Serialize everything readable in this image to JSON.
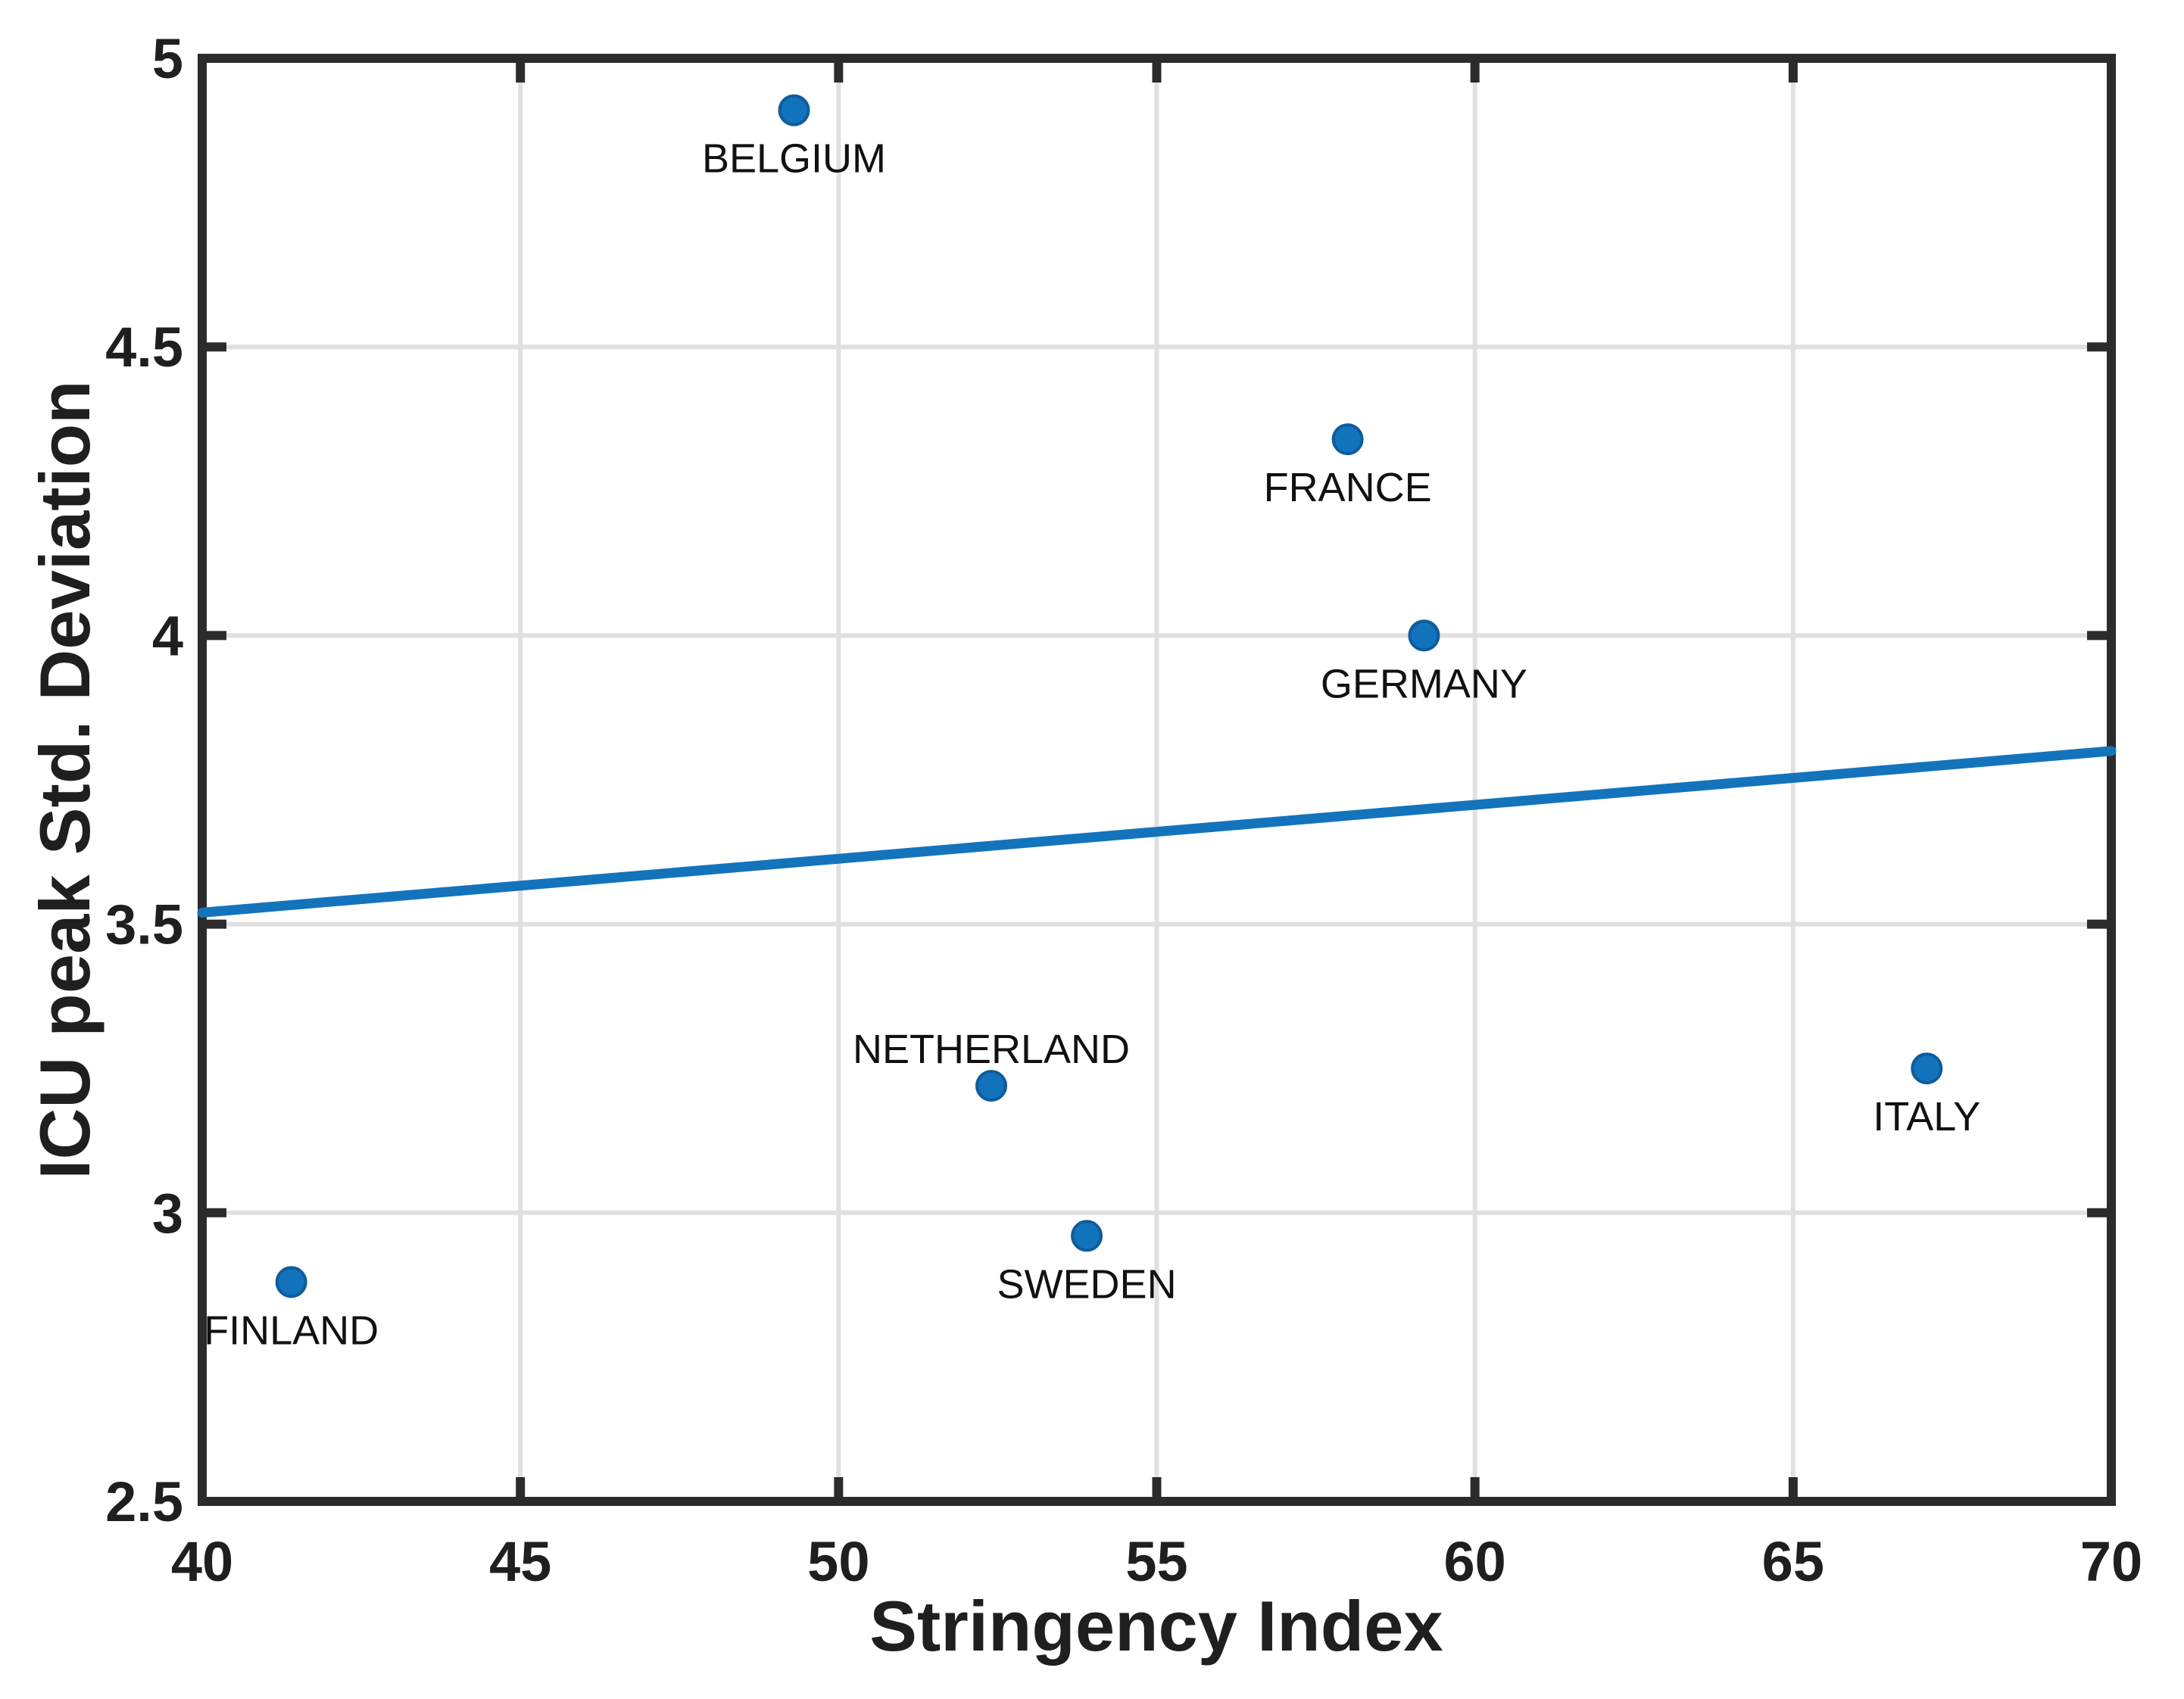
{
  "figure": {
    "background": "#ffffff",
    "axis_color": "#2b2b2b",
    "grid_color": "#e0e0e0",
    "text_color": "#1f1f1f",
    "marker_color": "#1273bd",
    "marker_edge_color": "#0d5c9e",
    "trend_color": "#1374bc"
  },
  "chart_data": {
    "type": "scatter",
    "title": "",
    "xlabel": "Stringency Index",
    "ylabel": "ICU peak Std. Deviation",
    "xlim": [
      40,
      70
    ],
    "ylim": [
      2.5,
      5
    ],
    "x_ticks": [
      40,
      45,
      50,
      55,
      60,
      65,
      70
    ],
    "y_ticks": [
      2.5,
      3,
      3.5,
      4,
      4.5,
      5
    ],
    "grid": true,
    "legend": null,
    "points": [
      {
        "label": "BELGIUM",
        "x": 49.3,
        "y": 4.91,
        "label_position": "below"
      },
      {
        "label": "FRANCE",
        "x": 58.0,
        "y": 4.34,
        "label_position": "below"
      },
      {
        "label": "GERMANY",
        "x": 59.2,
        "y": 4.0,
        "label_position": "below"
      },
      {
        "label": "NETHERLAND",
        "x": 52.4,
        "y": 3.22,
        "label_position": "above"
      },
      {
        "label": "SWEDEN",
        "x": 53.9,
        "y": 2.96,
        "label_position": "below"
      },
      {
        "label": "ITALY",
        "x": 67.1,
        "y": 3.25,
        "label_position": "below"
      },
      {
        "label": "FINLAND",
        "x": 41.4,
        "y": 2.88,
        "label_position": "below"
      }
    ],
    "trend_line": {
      "x1": 40,
      "y1": 3.52,
      "x2": 70,
      "y2": 3.8
    }
  }
}
